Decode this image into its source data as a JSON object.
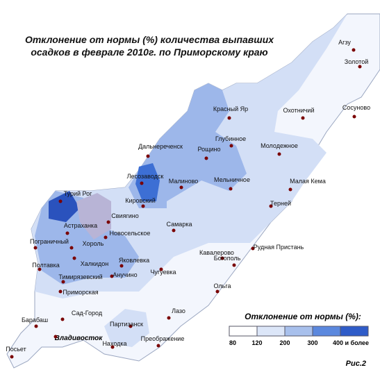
{
  "title": {
    "line1": "Отклонение от нормы (%) количества выпавших",
    "line2": "осадков в феврале  2010г. по Приморскому краю"
  },
  "stations": [
    "Агзу",
    "Золотой",
    "Сосуново",
    "Охотничий",
    "Красный Яр",
    "Глубинное",
    "Молодежное",
    "Дальнереченск",
    "Рощино",
    "Лесозаводск",
    "Малиново",
    "Мельничное",
    "Малая Кема",
    "Кировский",
    "Турий Рог",
    "Терней",
    "Свиягино",
    "Самарка",
    "Астраханка",
    "Новосельское",
    "Пограничный",
    "Хороль",
    "Рудная Пристань",
    "Кавалерово",
    "Богополь",
    "Халкидон",
    "Яковлевка",
    "Полтавка",
    "Чугуевка",
    "Анучино",
    "Тимирязевский",
    "Ольга",
    "Приморская",
    "Лазо",
    "Сад-Город",
    "Барабаш",
    "Партизанск",
    "Находка",
    "Преображение",
    "Посьет"
  ],
  "city": "Владивосток",
  "legend": {
    "title": "Отклонение от нормы (%):",
    "labels": [
      "80",
      "120",
      "200",
      "300",
      "400 и более"
    ]
  },
  "figure_label": "Рис.2"
}
